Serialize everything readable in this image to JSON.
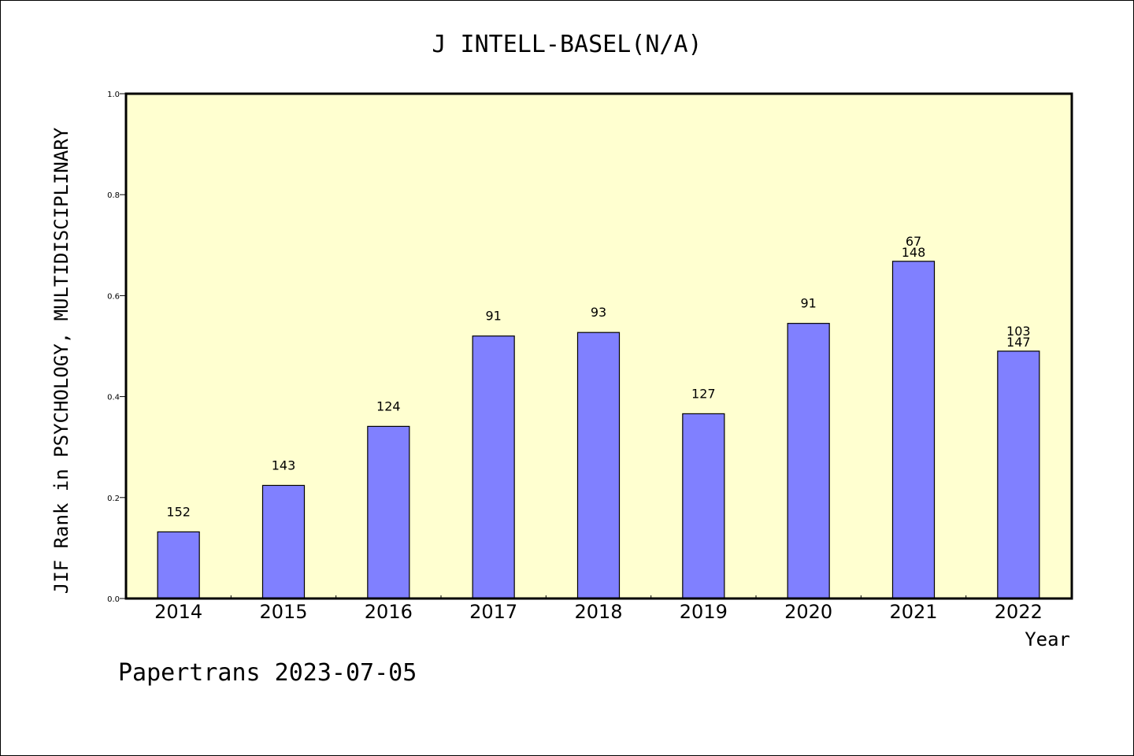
{
  "chart_data": {
    "type": "bar",
    "title": "J INTELL-BASEL(N/A)",
    "xlabel": "Year",
    "ylabel": "JIF Rank in PSYCHOLOGY, MULTIDISCIPLINARY",
    "ylim": [
      0,
      1.0
    ],
    "yticks": [
      "0.0",
      "0.2",
      "0.4",
      "0.6",
      "0.8",
      "1.0"
    ],
    "grid": false,
    "plot_background": "#ffffd0",
    "bar_color": "#8080ff",
    "categories": [
      "2014",
      "2015",
      "2016",
      "2017",
      "2018",
      "2019",
      "2020",
      "2021",
      "2022"
    ],
    "values": [
      0.132,
      0.224,
      0.341,
      0.52,
      0.527,
      0.366,
      0.545,
      0.668,
      0.49
    ],
    "rank_labels": [
      "152",
      "143",
      "124",
      "91",
      "93",
      "127",
      "91",
      "67",
      "103"
    ],
    "total_labels": [
      "",
      "",
      "",
      "",
      "",
      "",
      "",
      "148",
      "147"
    ]
  },
  "footer": "Papertrans 2023-07-05"
}
